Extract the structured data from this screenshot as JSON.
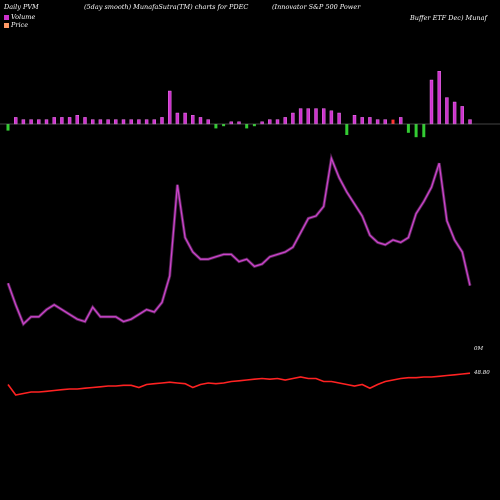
{
  "header": {
    "t1": "Daily PVM",
    "t2": "(5day smooth) MunafaSutra(TM) charts for PDEC",
    "t3": "(Innovator S&P 500  Power",
    "t4": "Buffer ETF Dec) Munaf"
  },
  "legend": [
    {
      "label": "Volume",
      "color": "#cc33cc"
    },
    {
      "label": "Price",
      "color": "#ff9966"
    }
  ],
  "chart_data": {
    "type": "line",
    "volume_bar_heights": [
      3,
      3,
      2,
      2,
      2,
      2,
      3,
      3,
      3,
      4,
      3,
      2,
      2,
      2,
      2,
      2,
      2,
      2,
      2,
      2,
      3,
      15,
      5,
      5,
      4,
      3,
      2,
      2,
      1,
      1,
      1,
      2,
      1,
      1,
      2,
      2,
      3,
      5,
      7,
      7,
      7,
      7,
      6,
      5,
      5,
      4,
      3,
      3,
      2,
      2,
      2,
      3,
      4,
      6,
      6,
      20,
      24,
      12,
      10,
      8,
      2
    ],
    "volume_bar_colors": [
      "g",
      "p",
      "p",
      "p",
      "p",
      "p",
      "p",
      "p",
      "p",
      "p",
      "p",
      "p",
      "p",
      "p",
      "p",
      "p",
      "p",
      "p",
      "p",
      "p",
      "p",
      "p",
      "p",
      "p",
      "p",
      "p",
      "p",
      "g",
      "g",
      "p",
      "p",
      "g",
      "g",
      "p",
      "p",
      "p",
      "p",
      "p",
      "p",
      "p",
      "p",
      "p",
      "p",
      "p",
      "g",
      "p",
      "p",
      "p",
      "p",
      "p",
      "r",
      "p",
      "g",
      "g",
      "g",
      "p",
      "p",
      "p",
      "p",
      "p",
      "p"
    ],
    "volume_line": [
      42,
      33,
      25,
      28,
      28,
      31,
      33,
      31,
      29,
      27,
      26,
      32,
      28,
      28,
      28,
      26,
      27,
      29,
      31,
      30,
      34,
      45,
      83,
      61,
      55,
      52,
      52,
      53,
      54,
      54,
      51,
      52,
      49,
      50,
      53,
      54,
      55,
      57,
      63,
      69,
      70,
      74,
      94,
      86,
      80,
      75,
      70,
      62,
      59,
      58,
      60,
      59,
      61,
      71,
      76,
      82,
      92,
      68,
      60,
      55,
      41
    ],
    "volume_line_label": "0M",
    "price_line": [
      48.79,
      48.72,
      48.73,
      48.74,
      48.74,
      48.745,
      48.75,
      48.755,
      48.76,
      48.76,
      48.765,
      48.77,
      48.775,
      48.78,
      48.78,
      48.785,
      48.785,
      48.77,
      48.79,
      48.795,
      48.8,
      48.805,
      48.8,
      48.795,
      48.77,
      48.79,
      48.8,
      48.795,
      48.8,
      48.81,
      48.815,
      48.82,
      48.825,
      48.83,
      48.825,
      48.83,
      48.82,
      48.83,
      48.84,
      48.83,
      48.83,
      48.81,
      48.81,
      48.8,
      48.79,
      48.78,
      48.79,
      48.765,
      48.79,
      48.81,
      48.82,
      48.83,
      48.835,
      48.835,
      48.84,
      48.84,
      48.845,
      48.85,
      48.855,
      48.86,
      48.865
    ],
    "price_label": "48.80",
    "colors": {
      "volume": "#cc44cc",
      "volume_glow": "#ff66ff",
      "price": "#ff2222",
      "bar_green": "#33cc33",
      "bar_red": "#ff3333",
      "axis": "#888888"
    }
  }
}
